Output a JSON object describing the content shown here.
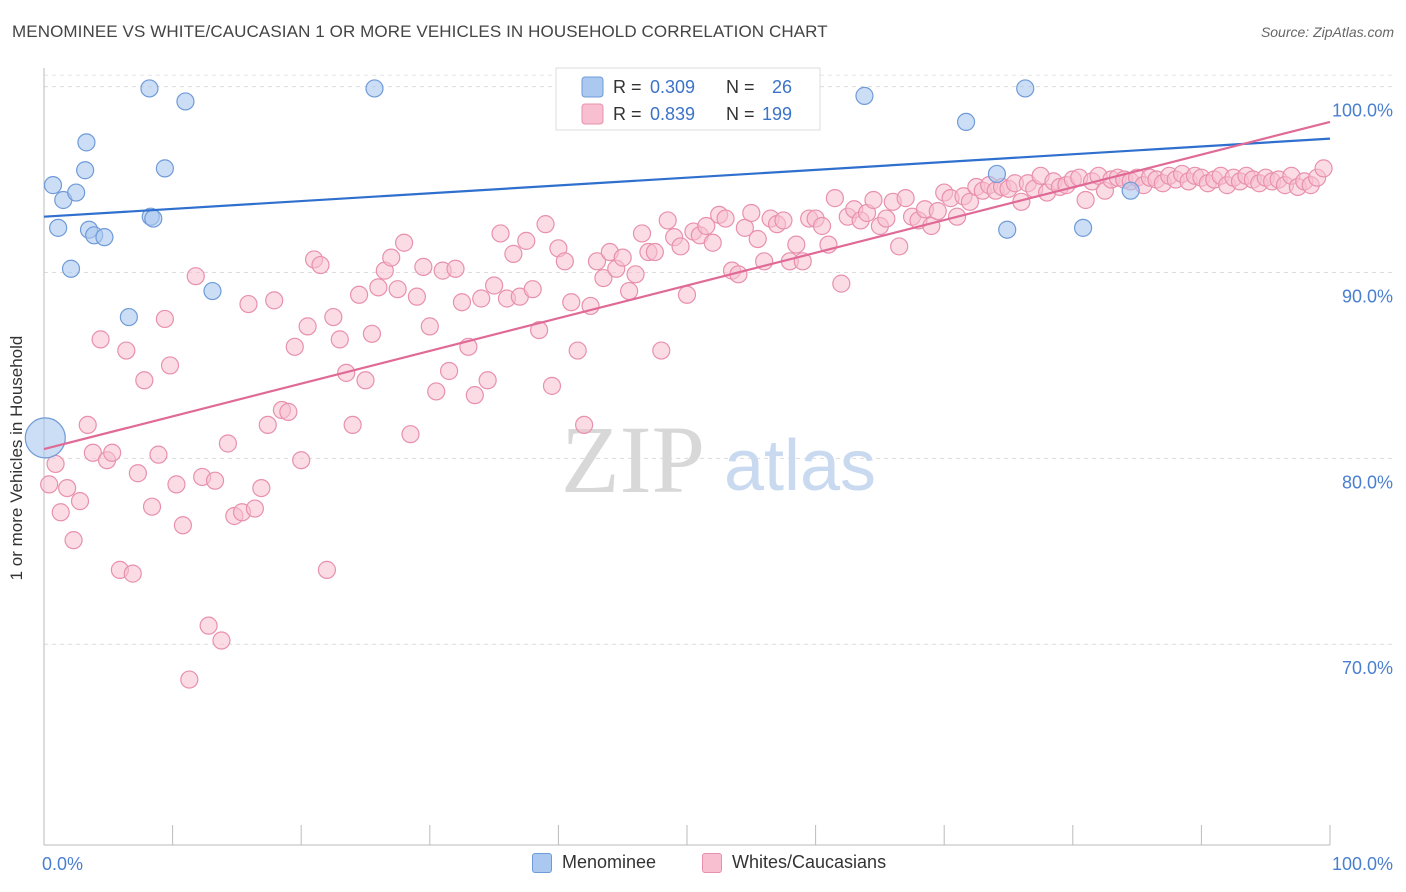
{
  "title": "MENOMINEE VS WHITE/CAUCASIAN 1 OR MORE VEHICLES IN HOUSEHOLD CORRELATION CHART",
  "source": "Source: ZipAtlas.com",
  "watermark": {
    "zip": "ZIP",
    "atlas": "atlas"
  },
  "legend": {
    "series": [
      {
        "r_label": "R =",
        "r_value": "0.309",
        "n_label": "N =",
        "n_value": "26",
        "fill": "#aac8f0",
        "stroke": "#6f9bd8"
      },
      {
        "r_label": "R =",
        "r_value": "0.839",
        "n_label": "N =",
        "n_value": "199",
        "fill": "#f7bfd0",
        "stroke": "#e890ae"
      }
    ]
  },
  "bottom_legend": [
    {
      "label": "Menominee",
      "fill": "#aac8f0",
      "stroke": "#6f9bd8"
    },
    {
      "label": "Whites/Caucasians",
      "fill": "#f7bfd0",
      "stroke": "#e890ae"
    }
  ],
  "chart_data": {
    "type": "scatter",
    "title": "MENOMINEE VS WHITE/CAUCASIAN 1 OR MORE VEHICLES IN HOUSEHOLD CORRELATION CHART",
    "xlabel": "",
    "ylabel": "1 or more Vehicles in Household",
    "xlim": [
      0,
      100
    ],
    "ylim": [
      59.2,
      101
    ],
    "x_tick_labels": [
      "0.0%",
      "100.0%"
    ],
    "y_ticks": [
      70,
      80,
      90,
      100
    ],
    "y_tick_labels": [
      "70.0%",
      "80.0%",
      "90.0%",
      "100.0%"
    ],
    "colors": {
      "menominee": "#2f6fce",
      "whites": "#e06a96",
      "axis_text": "#4a7fd0"
    },
    "series": [
      {
        "name": "Menominee",
        "trend": {
          "x": [
            0,
            100
          ],
          "y": [
            93.0,
            97.2
          ]
        },
        "points": [
          [
            0.1,
            81.1
          ],
          [
            0.7,
            94.7
          ],
          [
            1.1,
            92.4
          ],
          [
            1.5,
            93.9
          ],
          [
            2.1,
            90.2
          ],
          [
            2.5,
            94.3
          ],
          [
            3.3,
            97.0
          ],
          [
            3.5,
            92.3
          ],
          [
            3.9,
            92.0
          ],
          [
            4.7,
            91.9
          ],
          [
            3.2,
            95.5
          ],
          [
            6.6,
            87.6
          ],
          [
            8.2,
            99.9
          ],
          [
            8.3,
            93.0
          ],
          [
            8.5,
            92.9
          ],
          [
            9.4,
            95.6
          ],
          [
            11.0,
            99.2
          ],
          [
            13.1,
            89.0
          ],
          [
            25.7,
            99.9
          ],
          [
            63.8,
            99.5
          ],
          [
            71.7,
            98.1
          ],
          [
            74.1,
            95.3
          ],
          [
            74.9,
            92.3
          ],
          [
            76.3,
            99.9
          ],
          [
            80.8,
            92.4
          ],
          [
            84.5,
            94.4
          ]
        ]
      },
      {
        "name": "Whites/Caucasians",
        "trend": {
          "x": [
            0,
            100
          ],
          "y": [
            80.5,
            98.1
          ]
        },
        "points": [
          [
            0.4,
            78.6
          ],
          [
            0.9,
            79.7
          ],
          [
            1.3,
            77.1
          ],
          [
            1.8,
            78.4
          ],
          [
            2.3,
            75.6
          ],
          [
            2.8,
            77.7
          ],
          [
            3.4,
            81.8
          ],
          [
            3.8,
            80.3
          ],
          [
            4.4,
            86.4
          ],
          [
            4.9,
            79.9
          ],
          [
            5.3,
            80.3
          ],
          [
            5.9,
            74.0
          ],
          [
            6.4,
            85.8
          ],
          [
            6.9,
            73.8
          ],
          [
            7.3,
            79.2
          ],
          [
            7.8,
            84.2
          ],
          [
            8.4,
            77.4
          ],
          [
            8.9,
            80.2
          ],
          [
            9.4,
            87.5
          ],
          [
            9.8,
            85.0
          ],
          [
            10.3,
            78.6
          ],
          [
            10.8,
            76.4
          ],
          [
            11.3,
            68.1
          ],
          [
            11.8,
            89.8
          ],
          [
            12.3,
            79.0
          ],
          [
            12.8,
            71.0
          ],
          [
            13.3,
            78.8
          ],
          [
            13.8,
            70.2
          ],
          [
            14.3,
            80.8
          ],
          [
            14.8,
            76.9
          ],
          [
            15.4,
            77.1
          ],
          [
            15.9,
            88.3
          ],
          [
            16.4,
            77.3
          ],
          [
            16.9,
            78.4
          ],
          [
            17.4,
            81.8
          ],
          [
            17.9,
            88.5
          ],
          [
            18.5,
            82.6
          ],
          [
            19.0,
            82.5
          ],
          [
            19.5,
            86.0
          ],
          [
            20.0,
            79.9
          ],
          [
            20.5,
            87.1
          ],
          [
            21.0,
            90.7
          ],
          [
            21.5,
            90.4
          ],
          [
            22.0,
            74.0
          ],
          [
            22.5,
            87.6
          ],
          [
            23.0,
            86.4
          ],
          [
            23.5,
            84.6
          ],
          [
            24.0,
            81.8
          ],
          [
            24.5,
            88.8
          ],
          [
            25.0,
            84.2
          ],
          [
            25.5,
            86.7
          ],
          [
            26.0,
            89.2
          ],
          [
            26.5,
            90.1
          ],
          [
            27.0,
            90.8
          ],
          [
            27.5,
            89.1
          ],
          [
            28.0,
            91.6
          ],
          [
            28.5,
            81.3
          ],
          [
            29.0,
            88.7
          ],
          [
            29.5,
            90.3
          ],
          [
            30.0,
            87.1
          ],
          [
            30.5,
            83.6
          ],
          [
            31.0,
            90.1
          ],
          [
            31.5,
            84.7
          ],
          [
            32.0,
            90.2
          ],
          [
            32.5,
            88.4
          ],
          [
            33.0,
            86.0
          ],
          [
            33.5,
            83.4
          ],
          [
            34.0,
            88.6
          ],
          [
            34.5,
            84.2
          ],
          [
            35.0,
            89.3
          ],
          [
            35.5,
            92.1
          ],
          [
            36.0,
            88.6
          ],
          [
            36.5,
            91.0
          ],
          [
            37.0,
            88.7
          ],
          [
            37.5,
            91.7
          ],
          [
            38.0,
            89.1
          ],
          [
            38.5,
            86.9
          ],
          [
            39.0,
            92.6
          ],
          [
            39.5,
            83.9
          ],
          [
            40.0,
            91.3
          ],
          [
            40.5,
            90.6
          ],
          [
            41.0,
            88.4
          ],
          [
            41.5,
            85.8
          ],
          [
            42.0,
            81.8
          ],
          [
            42.5,
            88.2
          ],
          [
            43.0,
            90.6
          ],
          [
            43.5,
            89.7
          ],
          [
            44.0,
            91.1
          ],
          [
            44.5,
            90.2
          ],
          [
            45.0,
            90.8
          ],
          [
            45.5,
            89.0
          ],
          [
            46.0,
            89.9
          ],
          [
            46.5,
            92.1
          ],
          [
            47.0,
            91.1
          ],
          [
            47.5,
            91.1
          ],
          [
            48.0,
            85.8
          ],
          [
            48.5,
            92.8
          ],
          [
            49.0,
            91.9
          ],
          [
            49.5,
            91.4
          ],
          [
            50.0,
            88.8
          ],
          [
            50.5,
            92.2
          ],
          [
            51.0,
            92.0
          ],
          [
            51.5,
            92.5
          ],
          [
            52.0,
            91.6
          ],
          [
            52.5,
            93.1
          ],
          [
            53.0,
            92.9
          ],
          [
            53.5,
            90.1
          ],
          [
            54.0,
            89.9
          ],
          [
            54.5,
            92.4
          ],
          [
            55.0,
            93.2
          ],
          [
            55.5,
            91.8
          ],
          [
            56.0,
            90.6
          ],
          [
            56.5,
            92.9
          ],
          [
            57.0,
            92.6
          ],
          [
            57.5,
            92.8
          ],
          [
            58.0,
            90.6
          ],
          [
            58.5,
            91.5
          ],
          [
            59.0,
            90.6
          ],
          [
            59.5,
            92.9
          ],
          [
            60.0,
            92.9
          ],
          [
            60.5,
            92.5
          ],
          [
            61.0,
            91.5
          ],
          [
            61.5,
            94.0
          ],
          [
            62.0,
            89.4
          ],
          [
            62.5,
            93.0
          ],
          [
            63.0,
            93.4
          ],
          [
            63.5,
            92.8
          ],
          [
            64.0,
            93.2
          ],
          [
            64.5,
            93.9
          ],
          [
            65.0,
            92.5
          ],
          [
            65.5,
            92.9
          ],
          [
            66.0,
            93.8
          ],
          [
            66.5,
            91.4
          ],
          [
            67.0,
            94.0
          ],
          [
            67.5,
            93.0
          ],
          [
            68.0,
            92.8
          ],
          [
            68.5,
            93.4
          ],
          [
            69.0,
            92.5
          ],
          [
            69.5,
            93.3
          ],
          [
            70.0,
            94.3
          ],
          [
            70.5,
            94.0
          ],
          [
            71.0,
            93.0
          ],
          [
            71.5,
            94.1
          ],
          [
            72.0,
            93.8
          ],
          [
            72.5,
            94.6
          ],
          [
            73.0,
            94.4
          ],
          [
            73.5,
            94.7
          ],
          [
            74.0,
            94.4
          ],
          [
            74.5,
            94.6
          ],
          [
            75.0,
            94.5
          ],
          [
            75.5,
            94.8
          ],
          [
            76.0,
            93.8
          ],
          [
            76.5,
            94.8
          ],
          [
            77.0,
            94.5
          ],
          [
            77.5,
            95.2
          ],
          [
            78.0,
            94.3
          ],
          [
            78.5,
            94.9
          ],
          [
            79.0,
            94.6
          ],
          [
            79.5,
            94.7
          ],
          [
            80.0,
            95.0
          ],
          [
            80.5,
            95.1
          ],
          [
            81.0,
            93.9
          ],
          [
            81.5,
            94.9
          ],
          [
            82.0,
            95.2
          ],
          [
            82.5,
            94.4
          ],
          [
            83.0,
            95.0
          ],
          [
            83.5,
            95.1
          ],
          [
            84.0,
            95.0
          ],
          [
            84.5,
            94.9
          ],
          [
            85.0,
            95.1
          ],
          [
            85.5,
            94.7
          ],
          [
            86.0,
            95.1
          ],
          [
            86.5,
            95.0
          ],
          [
            87.0,
            94.8
          ],
          [
            87.5,
            95.2
          ],
          [
            88.0,
            95.0
          ],
          [
            88.5,
            95.3
          ],
          [
            89.0,
            94.9
          ],
          [
            89.5,
            95.2
          ],
          [
            90.0,
            95.1
          ],
          [
            90.5,
            94.8
          ],
          [
            91.0,
            95.0
          ],
          [
            91.5,
            95.2
          ],
          [
            92.0,
            94.7
          ],
          [
            92.5,
            95.1
          ],
          [
            93.0,
            94.9
          ],
          [
            93.5,
            95.2
          ],
          [
            94.0,
            95.0
          ],
          [
            94.5,
            94.8
          ],
          [
            95.0,
            95.1
          ],
          [
            95.5,
            94.9
          ],
          [
            96.0,
            95.0
          ],
          [
            96.5,
            94.7
          ],
          [
            97.0,
            95.2
          ],
          [
            97.5,
            94.6
          ],
          [
            98.0,
            94.9
          ],
          [
            98.5,
            94.7
          ],
          [
            99.0,
            95.1
          ],
          [
            99.5,
            95.6
          ]
        ]
      }
    ]
  }
}
